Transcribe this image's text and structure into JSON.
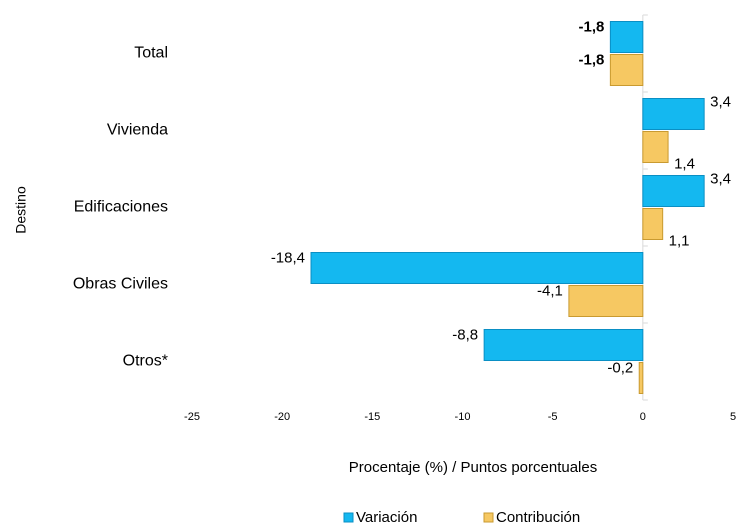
{
  "chart_data": {
    "type": "hbar",
    "y_axis_label": "Destino",
    "x_axis_label": "Procentaje (%) / Puntos porcentuales",
    "categories": [
      "Total",
      "Vivienda",
      "Edificaciones",
      "Obras Civiles",
      "Otros*"
    ],
    "series": [
      {
        "name": "Variación",
        "color": "#14b8f0",
        "values": [
          -1.8,
          3.4,
          3.4,
          -18.4,
          -8.8
        ],
        "value_labels": [
          "-1,8",
          "3,4",
          "3,4",
          "-18,4",
          "-8,8"
        ]
      },
      {
        "name": "Contribución",
        "color": "#f6c862",
        "values": [
          -1.8,
          1.4,
          1.1,
          -4.1,
          -0.2
        ],
        "value_labels": [
          "-1,8",
          "1,4",
          "1,1",
          "-4,1",
          "-0,2"
        ]
      }
    ],
    "xlim": [
      -25,
      5
    ],
    "xticks": [
      -25,
      -20,
      -15,
      -10,
      -5,
      0,
      5
    ],
    "legend": "bottom"
  }
}
